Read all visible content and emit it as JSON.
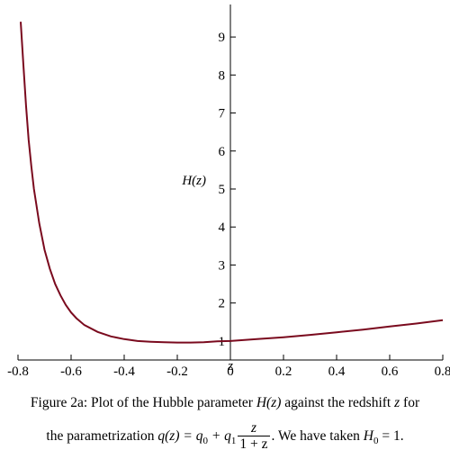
{
  "chart_data": {
    "type": "line",
    "xlabel": "z",
    "ylabel": "H(z)",
    "xlim": [
      -0.8,
      0.8
    ],
    "ylim": [
      0.5,
      9.5
    ],
    "x_ticks": [
      -0.8,
      -0.6,
      -0.4,
      -0.2,
      0,
      0.2,
      0.4,
      0.6,
      0.8
    ],
    "x_tick_labels": [
      "-0.8",
      "-0.6",
      "-0.4",
      "-0.2",
      "0",
      "0.2",
      "0.4",
      "0.6",
      "0.8"
    ],
    "y_ticks": [
      1,
      2,
      3,
      4,
      5,
      6,
      7,
      8,
      9
    ],
    "y_tick_labels": [
      "1",
      "2",
      "3",
      "4",
      "5",
      "6",
      "7",
      "8",
      "9"
    ],
    "line_color": "#7a0a1e",
    "series": [
      {
        "x": [
          -0.79,
          -0.78,
          -0.77,
          -0.76,
          -0.75,
          -0.74,
          -0.72,
          -0.7,
          -0.68,
          -0.66,
          -0.64,
          -0.62,
          -0.6,
          -0.58,
          -0.55,
          -0.5,
          -0.45,
          -0.4,
          -0.35,
          -0.3,
          -0.25,
          -0.2,
          -0.15,
          -0.1,
          -0.05,
          0,
          0.1,
          0.2,
          0.3,
          0.4,
          0.5,
          0.6,
          0.7,
          0.8
        ],
        "y": [
          9.4,
          8.3,
          7.2,
          6.3,
          5.6,
          5.0,
          4.1,
          3.4,
          2.9,
          2.5,
          2.2,
          1.95,
          1.75,
          1.6,
          1.42,
          1.24,
          1.12,
          1.05,
          1.0,
          0.98,
          0.97,
          0.96,
          0.96,
          0.97,
          0.99,
          1.0,
          1.05,
          1.1,
          1.16,
          1.23,
          1.3,
          1.38,
          1.46,
          1.55
        ]
      }
    ]
  },
  "caption": {
    "line1_a": "Figure 2a: Plot of the Hubble parameter ",
    "line1_expr": "H(z)",
    "line1_b": " against the redshift ",
    "line1_var": "z",
    "line1_c": " for",
    "line2_a": "the parametrization ",
    "line2_q": "q(z) = q",
    "line2_q0_sub": "0",
    "line2_plus": " + q",
    "line2_q1_sub": "1",
    "line2_num": "z",
    "line2_den": "1 + z",
    "line2_b": ". We have taken ",
    "line2_h": "H",
    "line2_h0_sub": "0",
    "line2_c": " = 1."
  }
}
